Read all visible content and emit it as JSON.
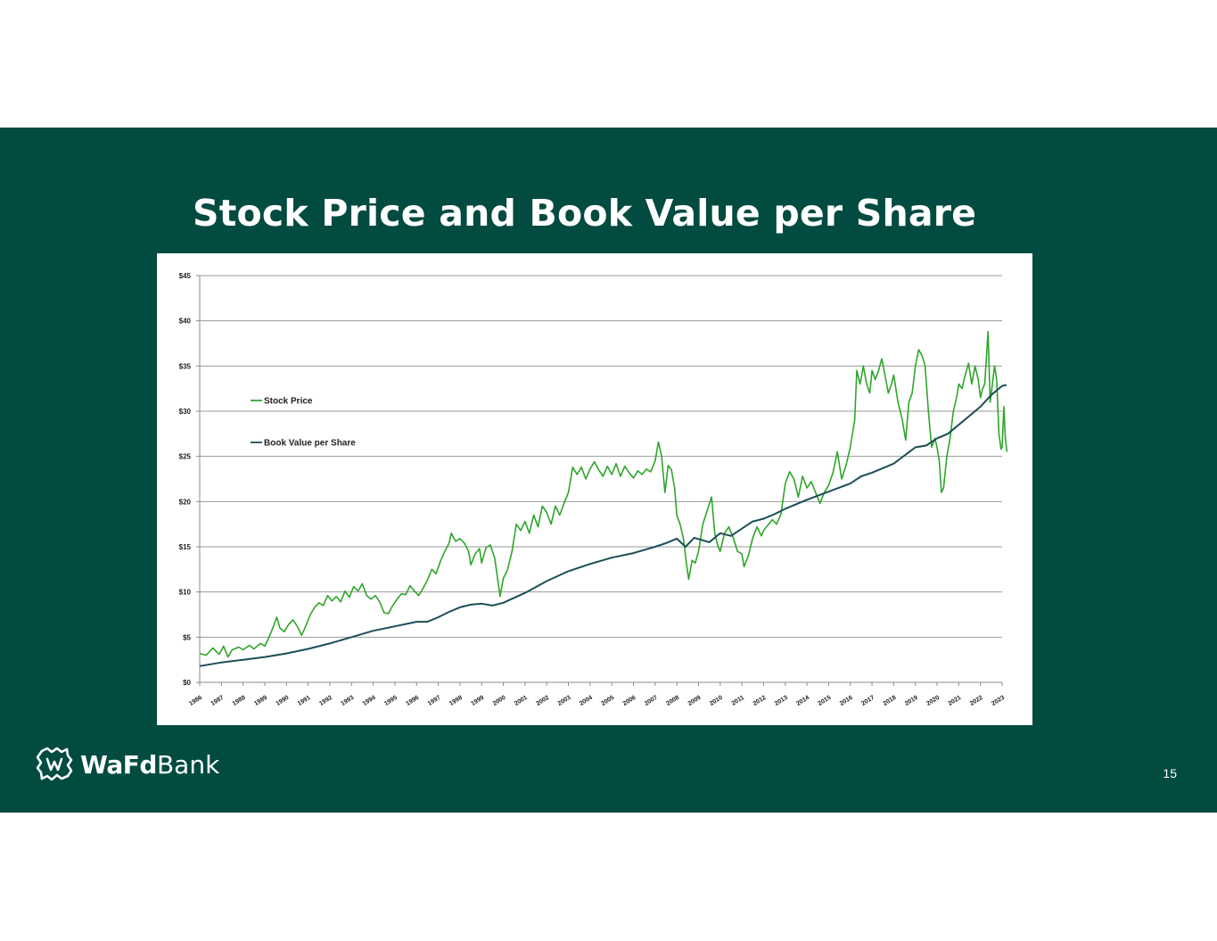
{
  "slide": {
    "title": "Stock Price and Book Value per Share",
    "page_number": "15",
    "brand_bold": "WaFd",
    "brand_light": "Bank",
    "background_color": "#014b40"
  },
  "chart_data": {
    "type": "line",
    "title": "",
    "xlabel": "",
    "ylabel": "",
    "ylim": [
      0,
      45
    ],
    "xlim": [
      1986,
      2023
    ],
    "y_ticks": [
      0,
      5,
      10,
      15,
      20,
      25,
      30,
      35,
      40,
      45
    ],
    "y_tick_labels": [
      "$0",
      "$5",
      "$10",
      "$15",
      "$20",
      "$25",
      "$30",
      "$35",
      "$40",
      "$45"
    ],
    "x_tick_labels": [
      "1986",
      "1987",
      "1988",
      "1989",
      "1990",
      "1991",
      "1992",
      "1993",
      "1994",
      "1995",
      "1996",
      "1997",
      "1998",
      "1999",
      "2000",
      "2001",
      "2002",
      "2003",
      "2004",
      "2005",
      "2006",
      "2007",
      "2008",
      "2009",
      "2010",
      "2011",
      "2012",
      "2013",
      "2014",
      "2015",
      "2016",
      "2017",
      "2018",
      "2019",
      "2020",
      "2021",
      "2022",
      "2023"
    ],
    "grid": "horizontal",
    "legend_position": "upper-left",
    "series": [
      {
        "name": "Stock Price",
        "color": "#2fa52b",
        "points": [
          [
            1986.0,
            3.2
          ],
          [
            1986.3,
            3.0
          ],
          [
            1986.6,
            3.8
          ],
          [
            1986.9,
            3.1
          ],
          [
            1987.1,
            4.0
          ],
          [
            1987.3,
            2.8
          ],
          [
            1987.5,
            3.6
          ],
          [
            1987.8,
            3.9
          ],
          [
            1988.0,
            3.6
          ],
          [
            1988.3,
            4.1
          ],
          [
            1988.5,
            3.7
          ],
          [
            1988.8,
            4.3
          ],
          [
            1989.0,
            4.0
          ],
          [
            1989.2,
            5.0
          ],
          [
            1989.4,
            6.2
          ],
          [
            1989.55,
            7.2
          ],
          [
            1989.7,
            6.0
          ],
          [
            1989.9,
            5.6
          ],
          [
            1990.1,
            6.4
          ],
          [
            1990.3,
            6.9
          ],
          [
            1990.5,
            6.2
          ],
          [
            1990.7,
            5.2
          ],
          [
            1990.9,
            6.3
          ],
          [
            1991.1,
            7.5
          ],
          [
            1991.3,
            8.3
          ],
          [
            1991.5,
            8.8
          ],
          [
            1991.7,
            8.5
          ],
          [
            1991.9,
            9.6
          ],
          [
            1992.1,
            9.0
          ],
          [
            1992.3,
            9.5
          ],
          [
            1992.5,
            8.9
          ],
          [
            1992.7,
            10.1
          ],
          [
            1992.9,
            9.4
          ],
          [
            1993.1,
            10.6
          ],
          [
            1993.3,
            10.1
          ],
          [
            1993.5,
            10.9
          ],
          [
            1993.7,
            9.6
          ],
          [
            1993.9,
            9.2
          ],
          [
            1994.1,
            9.6
          ],
          [
            1994.3,
            8.9
          ],
          [
            1994.5,
            7.7
          ],
          [
            1994.7,
            7.6
          ],
          [
            1994.9,
            8.5
          ],
          [
            1995.1,
            9.2
          ],
          [
            1995.3,
            9.8
          ],
          [
            1995.5,
            9.7
          ],
          [
            1995.7,
            10.7
          ],
          [
            1995.9,
            10.1
          ],
          [
            1996.1,
            9.6
          ],
          [
            1996.3,
            10.4
          ],
          [
            1996.5,
            11.3
          ],
          [
            1996.7,
            12.5
          ],
          [
            1996.9,
            12.0
          ],
          [
            1997.1,
            13.4
          ],
          [
            1997.3,
            14.5
          ],
          [
            1997.5,
            15.4
          ],
          [
            1997.6,
            16.5
          ],
          [
            1997.8,
            15.6
          ],
          [
            1998.0,
            15.9
          ],
          [
            1998.2,
            15.4
          ],
          [
            1998.4,
            14.5
          ],
          [
            1998.5,
            13.0
          ],
          [
            1998.7,
            14.2
          ],
          [
            1998.9,
            14.8
          ],
          [
            1999.0,
            13.2
          ],
          [
            1999.2,
            14.9
          ],
          [
            1999.4,
            15.2
          ],
          [
            1999.6,
            13.8
          ],
          [
            1999.75,
            11.2
          ],
          [
            1999.85,
            9.5
          ],
          [
            2000.0,
            11.5
          ],
          [
            2000.2,
            12.5
          ],
          [
            2000.4,
            14.5
          ],
          [
            2000.6,
            17.5
          ],
          [
            2000.8,
            16.8
          ],
          [
            2001.0,
            17.8
          ],
          [
            2001.2,
            16.5
          ],
          [
            2001.4,
            18.5
          ],
          [
            2001.6,
            17.2
          ],
          [
            2001.8,
            19.5
          ],
          [
            2002.0,
            18.8
          ],
          [
            2002.2,
            17.5
          ],
          [
            2002.4,
            19.5
          ],
          [
            2002.6,
            18.5
          ],
          [
            2002.8,
            19.8
          ],
          [
            2003.0,
            21.0
          ],
          [
            2003.2,
            23.8
          ],
          [
            2003.4,
            23.0
          ],
          [
            2003.6,
            23.8
          ],
          [
            2003.8,
            22.5
          ],
          [
            2004.0,
            23.6
          ],
          [
            2004.2,
            24.4
          ],
          [
            2004.4,
            23.5
          ],
          [
            2004.6,
            22.8
          ],
          [
            2004.8,
            23.9
          ],
          [
            2005.0,
            23.0
          ],
          [
            2005.2,
            24.2
          ],
          [
            2005.4,
            22.8
          ],
          [
            2005.6,
            23.9
          ],
          [
            2005.8,
            23.2
          ],
          [
            2006.0,
            22.6
          ],
          [
            2006.2,
            23.4
          ],
          [
            2006.4,
            23.0
          ],
          [
            2006.6,
            23.6
          ],
          [
            2006.8,
            23.3
          ],
          [
            2007.0,
            24.5
          ],
          [
            2007.15,
            26.6
          ],
          [
            2007.3,
            25.0
          ],
          [
            2007.45,
            21.0
          ],
          [
            2007.6,
            24.0
          ],
          [
            2007.75,
            23.5
          ],
          [
            2007.9,
            21.5
          ],
          [
            2008.0,
            18.5
          ],
          [
            2008.15,
            17.5
          ],
          [
            2008.3,
            16.0
          ],
          [
            2008.45,
            13.0
          ],
          [
            2008.55,
            11.4
          ],
          [
            2008.7,
            13.5
          ],
          [
            2008.85,
            13.2
          ],
          [
            2009.0,
            14.5
          ],
          [
            2009.2,
            17.5
          ],
          [
            2009.4,
            19.0
          ],
          [
            2009.6,
            20.5
          ],
          [
            2009.75,
            16.5
          ],
          [
            2009.9,
            15.0
          ],
          [
            2010.0,
            14.5
          ],
          [
            2010.2,
            16.5
          ],
          [
            2010.4,
            17.2
          ],
          [
            2010.6,
            16.0
          ],
          [
            2010.8,
            14.5
          ],
          [
            2011.0,
            14.2
          ],
          [
            2011.1,
            12.8
          ],
          [
            2011.3,
            14.0
          ],
          [
            2011.5,
            16.0
          ],
          [
            2011.7,
            17.2
          ],
          [
            2011.9,
            16.2
          ],
          [
            2012.0,
            16.8
          ],
          [
            2012.2,
            17.4
          ],
          [
            2012.4,
            18.0
          ],
          [
            2012.6,
            17.5
          ],
          [
            2012.8,
            18.6
          ],
          [
            2013.0,
            22.0
          ],
          [
            2013.2,
            23.3
          ],
          [
            2013.4,
            22.5
          ],
          [
            2013.6,
            20.5
          ],
          [
            2013.8,
            22.8
          ],
          [
            2014.0,
            21.5
          ],
          [
            2014.2,
            22.2
          ],
          [
            2014.4,
            21.0
          ],
          [
            2014.6,
            19.8
          ],
          [
            2014.8,
            21.0
          ],
          [
            2015.0,
            21.8
          ],
          [
            2015.2,
            23.2
          ],
          [
            2015.4,
            25.5
          ],
          [
            2015.5,
            24.0
          ],
          [
            2015.6,
            22.5
          ],
          [
            2015.8,
            24.0
          ],
          [
            2016.0,
            26.0
          ],
          [
            2016.2,
            29.0
          ],
          [
            2016.3,
            34.5
          ],
          [
            2016.45,
            33.0
          ],
          [
            2016.6,
            35.0
          ],
          [
            2016.75,
            33.0
          ],
          [
            2016.9,
            32.0
          ],
          [
            2017.0,
            34.5
          ],
          [
            2017.15,
            33.5
          ],
          [
            2017.3,
            34.5
          ],
          [
            2017.45,
            35.8
          ],
          [
            2017.6,
            34.0
          ],
          [
            2017.75,
            32.0
          ],
          [
            2017.9,
            33.0
          ],
          [
            2018.0,
            34.0
          ],
          [
            2018.2,
            31.0
          ],
          [
            2018.4,
            29.0
          ],
          [
            2018.55,
            26.8
          ],
          [
            2018.7,
            31.0
          ],
          [
            2018.85,
            32.0
          ],
          [
            2019.0,
            35.0
          ],
          [
            2019.15,
            36.8
          ],
          [
            2019.3,
            36.2
          ],
          [
            2019.45,
            35.0
          ],
          [
            2019.6,
            30.0
          ],
          [
            2019.75,
            26.0
          ],
          [
            2019.9,
            27.0
          ],
          [
            2020.0,
            26.0
          ],
          [
            2020.1,
            24.5
          ],
          [
            2020.2,
            21.0
          ],
          [
            2020.3,
            21.5
          ],
          [
            2020.45,
            25.0
          ],
          [
            2020.6,
            27.0
          ],
          [
            2020.75,
            30.0
          ],
          [
            2020.9,
            31.5
          ],
          [
            2021.0,
            33.0
          ],
          [
            2021.15,
            32.5
          ],
          [
            2021.3,
            34.0
          ],
          [
            2021.45,
            35.3
          ],
          [
            2021.6,
            33.0
          ],
          [
            2021.75,
            35.0
          ],
          [
            2021.9,
            33.5
          ],
          [
            2022.0,
            31.5
          ],
          [
            2022.1,
            32.5
          ],
          [
            2022.2,
            33.0
          ],
          [
            2022.35,
            38.8
          ],
          [
            2022.45,
            31.0
          ],
          [
            2022.55,
            33.0
          ],
          [
            2022.65,
            35.0
          ],
          [
            2022.75,
            33.5
          ],
          [
            2022.85,
            27.5
          ],
          [
            2022.95,
            25.8
          ],
          [
            2023.0,
            26.0
          ],
          [
            2023.08,
            30.5
          ],
          [
            2023.15,
            27.0
          ],
          [
            2023.22,
            25.5
          ]
        ]
      },
      {
        "name": "Book Value per Share",
        "color": "#1b4e58",
        "points": [
          [
            1986.0,
            1.8
          ],
          [
            1987.0,
            2.2
          ],
          [
            1988.0,
            2.5
          ],
          [
            1989.0,
            2.8
          ],
          [
            1990.0,
            3.2
          ],
          [
            1991.0,
            3.7
          ],
          [
            1992.0,
            4.3
          ],
          [
            1993.0,
            5.0
          ],
          [
            1994.0,
            5.7
          ],
          [
            1995.0,
            6.2
          ],
          [
            1996.0,
            6.7
          ],
          [
            1996.5,
            6.7
          ],
          [
            1997.0,
            7.2
          ],
          [
            1997.5,
            7.8
          ],
          [
            1998.0,
            8.3
          ],
          [
            1998.5,
            8.6
          ],
          [
            1999.0,
            8.7
          ],
          [
            1999.5,
            8.5
          ],
          [
            2000.0,
            8.8
          ],
          [
            2001.0,
            9.9
          ],
          [
            2002.0,
            11.2
          ],
          [
            2003.0,
            12.3
          ],
          [
            2004.0,
            13.1
          ],
          [
            2005.0,
            13.8
          ],
          [
            2006.0,
            14.3
          ],
          [
            2007.0,
            15.0
          ],
          [
            2007.5,
            15.4
          ],
          [
            2008.0,
            15.9
          ],
          [
            2008.4,
            15.0
          ],
          [
            2008.8,
            16.0
          ],
          [
            2009.5,
            15.5
          ],
          [
            2010.0,
            16.5
          ],
          [
            2010.5,
            16.2
          ],
          [
            2011.0,
            17.0
          ],
          [
            2011.5,
            17.8
          ],
          [
            2012.0,
            18.1
          ],
          [
            2012.5,
            18.6
          ],
          [
            2013.0,
            19.2
          ],
          [
            2014.0,
            20.2
          ],
          [
            2015.0,
            21.1
          ],
          [
            2016.0,
            22.0
          ],
          [
            2016.5,
            22.8
          ],
          [
            2017.0,
            23.2
          ],
          [
            2018.0,
            24.2
          ],
          [
            2019.0,
            26.0
          ],
          [
            2019.5,
            26.2
          ],
          [
            2020.0,
            27.0
          ],
          [
            2020.5,
            27.5
          ],
          [
            2021.0,
            28.5
          ],
          [
            2021.5,
            29.5
          ],
          [
            2022.0,
            30.5
          ],
          [
            2022.5,
            31.8
          ],
          [
            2023.0,
            32.8
          ],
          [
            2023.2,
            32.9
          ]
        ]
      }
    ]
  }
}
